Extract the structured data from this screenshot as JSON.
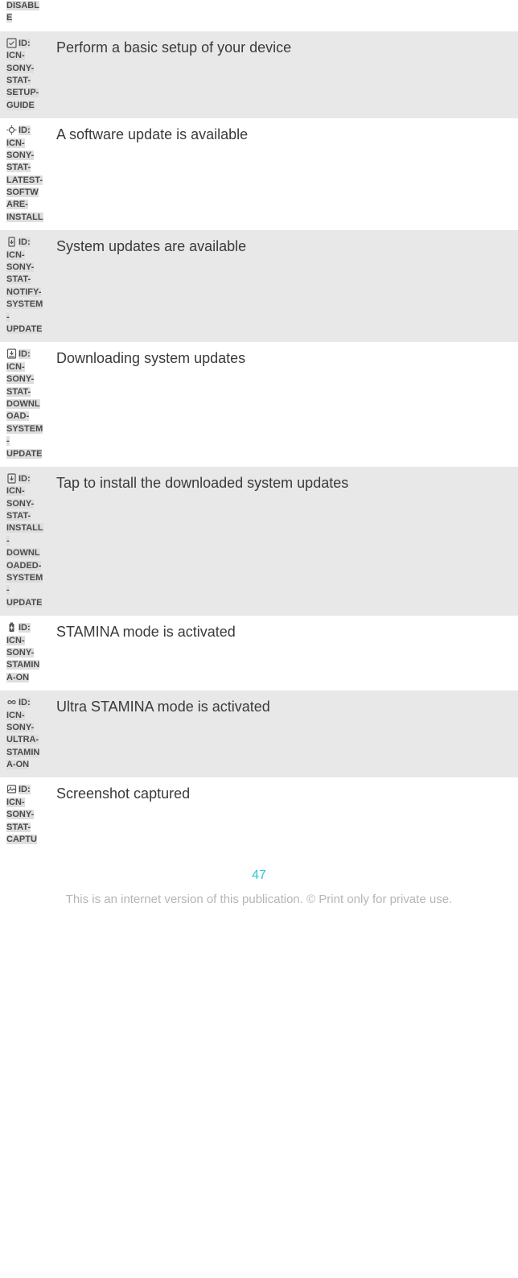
{
  "rows": [
    {
      "partial": true,
      "icon_id": "DISABLE",
      "description": "",
      "alt": false,
      "icon_type": "none"
    },
    {
      "icon_id": "ID: ICN-SONY-STAT-SETUP-GUIDE",
      "description": "Perform a basic setup of your device",
      "alt": true,
      "icon_type": "check"
    },
    {
      "icon_id": "ID: ICN-SONY-STAT-LATEST-SOFTWARE-INSTALL",
      "description": "A software update is available",
      "alt": false,
      "icon_type": "sparkle"
    },
    {
      "icon_id": "ID: ICN-SONY-STAT-NOTIFY-SYSTEM-UPDATE",
      "description": "System updates are available",
      "alt": true,
      "icon_type": "phone-down"
    },
    {
      "icon_id": "ID: ICN-SONY-STAT-DOWNLOAD-SYSTEM-UPDATE",
      "description": "Downloading system updates",
      "alt": false,
      "icon_type": "download-bar"
    },
    {
      "icon_id": "ID: ICN-SONY-STAT-INSTALL-DOWNLOADED-SYSTEM-UPDATE",
      "description": "Tap to install the downloaded system updates",
      "alt": true,
      "icon_type": "download"
    },
    {
      "icon_id": "ID: ICN-SONY-STAMINA-ON",
      "description": "STAMINA mode is activated",
      "alt": false,
      "icon_type": "battery-plus"
    },
    {
      "icon_id": "ID: ICN-SONY-ULTRA-STAMINA-ON",
      "description": "Ultra STAMINA mode is activated",
      "alt": true,
      "icon_type": "infinity"
    },
    {
      "icon_id": "ID: ICN-SONY-STAT-CAPTU",
      "description": "Screenshot captured",
      "alt": false,
      "icon_type": "image"
    }
  ],
  "page_number": "47",
  "footer": "This is an internet version of this publication. © Print only for private use.",
  "colors": {
    "alt_bg": "#e8e8e8",
    "text": "#3a3a3a",
    "id_text": "#4a4a4a",
    "id_bg": "#dedede",
    "page_num": "#2fc3d6",
    "footer": "#b5b5b5"
  },
  "fonts": {
    "desc_size": 18,
    "id_size": 11,
    "page_size": 16,
    "footer_size": 15
  }
}
